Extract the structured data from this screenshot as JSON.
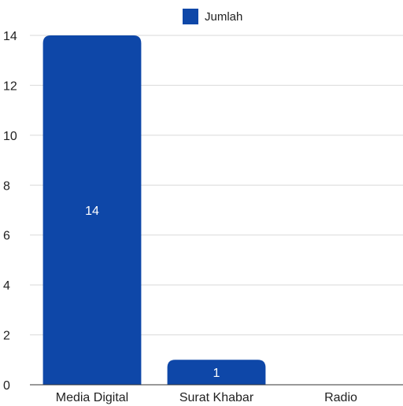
{
  "chart_data": {
    "type": "bar",
    "categories": [
      "Media Digital",
      "Surat Khabar",
      "Radio"
    ],
    "series": [
      {
        "name": "Jumlah",
        "values": [
          14,
          1,
          0
        ]
      }
    ],
    "ylim": [
      0,
      14
    ],
    "yticks": [
      0,
      2,
      4,
      6,
      8,
      10,
      12,
      14
    ],
    "grid": true,
    "legend_position": "top-center",
    "bar_color": "#0e47a8",
    "data_labels": [
      "14",
      "1",
      ""
    ]
  }
}
